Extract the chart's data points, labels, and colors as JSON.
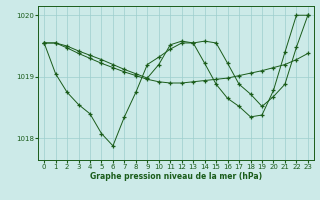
{
  "xlabel": "Graphe pression niveau de la mer (hPa)",
  "xlim": [
    -0.5,
    23.5
  ],
  "ylim": [
    1017.65,
    1020.15
  ],
  "yticks": [
    1018,
    1019,
    1020
  ],
  "xticks": [
    0,
    1,
    2,
    3,
    4,
    5,
    6,
    7,
    8,
    9,
    10,
    11,
    12,
    13,
    14,
    15,
    16,
    17,
    18,
    19,
    20,
    21,
    22,
    23
  ],
  "bg_color": "#cceae8",
  "line_color": "#1a5c1a",
  "grid_color": "#9ecece",
  "s1_x": [
    0,
    1,
    2,
    3,
    4,
    5,
    6,
    7,
    8,
    9,
    10,
    11,
    12,
    13,
    14,
    15,
    16,
    17,
    18,
    19,
    20,
    21,
    22,
    23
  ],
  "s1_y": [
    1019.55,
    1019.55,
    1019.47,
    1019.38,
    1019.3,
    1019.22,
    1019.15,
    1019.08,
    1019.02,
    1018.96,
    1018.92,
    1018.9,
    1018.9,
    1018.92,
    1018.94,
    1018.96,
    1018.98,
    1019.02,
    1019.06,
    1019.1,
    1019.15,
    1019.2,
    1019.28,
    1019.38
  ],
  "s2_x": [
    0,
    1,
    2,
    3,
    4,
    5,
    6,
    7,
    8,
    9,
    10,
    11,
    12,
    13,
    14,
    15,
    16,
    17,
    18,
    19,
    20,
    21,
    22,
    23
  ],
  "s2_y": [
    1019.55,
    1019.05,
    1018.75,
    1018.55,
    1018.4,
    1018.08,
    1017.88,
    1018.35,
    1018.75,
    1019.2,
    1019.32,
    1019.45,
    1019.55,
    1019.55,
    1019.22,
    1018.88,
    1018.65,
    1018.52,
    1018.35,
    1018.38,
    1018.78,
    1019.4,
    1020.0,
    1020.0
  ],
  "s3_x": [
    0,
    1,
    2,
    3,
    4,
    5,
    6,
    7,
    8,
    9,
    10,
    11,
    12,
    13,
    14,
    15,
    16,
    17,
    18,
    19,
    20,
    21,
    22,
    23
  ],
  "s3_y": [
    1019.55,
    1019.55,
    1019.5,
    1019.42,
    1019.35,
    1019.28,
    1019.2,
    1019.12,
    1019.05,
    1018.98,
    1019.2,
    1019.52,
    1019.58,
    1019.55,
    1019.58,
    1019.55,
    1019.22,
    1018.88,
    1018.72,
    1018.52,
    1018.68,
    1018.88,
    1019.48,
    1020.0
  ]
}
